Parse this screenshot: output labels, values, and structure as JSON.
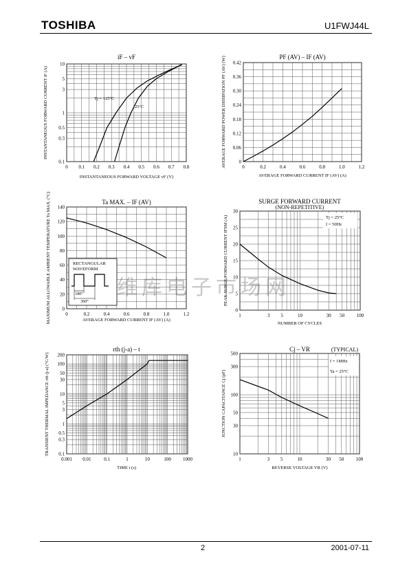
{
  "header": {
    "logo": "TOSHIBA",
    "part_number": "U1FWJ44L"
  },
  "footer": {
    "page": "2",
    "date": "2001-07-11"
  },
  "watermark": "维库电子市场网",
  "chart_data": [
    {
      "type": "line",
      "title": "iF – vF",
      "xlabel": "INSTANTANEOUS FORWARD VOLTAGE  vF  (V)",
      "ylabel": "INSTANTANEOUS FORWARD CURRENT  iF  (A)",
      "x_scale": "linear",
      "y_scale": "log",
      "xlim": [
        0,
        0.8
      ],
      "ylim": [
        0.1,
        10
      ],
      "xticks": [
        "0",
        "0.1",
        "0.2",
        "0.3",
        "0.4",
        "0.5",
        "0.6",
        "0.7",
        "0.8"
      ],
      "yticks": [
        "0.1",
        "0.3",
        "0.5",
        "1",
        "3",
        "5",
        "10"
      ],
      "annotations": [
        "Tj = 125°C",
        "25°C"
      ],
      "series": [
        {
          "x": [
            0.18,
            0.22,
            0.27,
            0.33,
            0.4,
            0.47,
            0.54,
            0.62,
            0.7,
            0.77
          ],
          "y": [
            0.1,
            0.2,
            0.5,
            1.0,
            2.0,
            3.2,
            4.5,
            6.0,
            7.8,
            9.6
          ]
        },
        {
          "x": [
            0.32,
            0.35,
            0.39,
            0.43,
            0.48,
            0.54,
            0.6,
            0.68,
            0.77
          ],
          "y": [
            0.1,
            0.2,
            0.5,
            1.0,
            2.0,
            3.5,
            5.0,
            7.0,
            9.8
          ]
        }
      ]
    },
    {
      "type": "line",
      "title": "PF (AV) – IF (AV)",
      "xlabel": "AVERAGE FORWARD CURRENT  IF (AV)  (A)",
      "ylabel": "AVERAGE FORWARD POWER DISSIPATION  PF (AV)  (W)",
      "xlim": [
        0,
        1.2
      ],
      "ylim": [
        0,
        0.42
      ],
      "xticks": [
        "0",
        "0.2",
        "0.4",
        "0.6",
        "0.8",
        "1.0",
        "1.2"
      ],
      "yticks": [
        "0",
        "0.06",
        "0.12",
        "0.18",
        "0.24",
        "0.30",
        "0.36",
        "0.42"
      ],
      "series": [
        {
          "x": [
            0,
            0.1,
            0.2,
            0.3,
            0.4,
            0.5,
            0.6,
            0.7,
            0.8,
            0.9,
            1.0
          ],
          "y": [
            0,
            0.022,
            0.045,
            0.07,
            0.097,
            0.126,
            0.158,
            0.192,
            0.23,
            0.27,
            0.31
          ]
        }
      ]
    },
    {
      "type": "line",
      "title": "Ta MAX. – IF (AV)",
      "xlabel": "AVERAGE FORWARD CURRENT  IF (AV)  (A)",
      "ylabel": "MAXIMUM ALLOWABLE AMBIENT TEMPERATURE  Ta MAX.  (°C)",
      "xlim": [
        0,
        1.2
      ],
      "ylim": [
        0,
        140
      ],
      "xticks": [
        "0",
        "0.2",
        "0.4",
        "0.6",
        "0.8",
        "1.0",
        "1.2"
      ],
      "yticks": [
        "0",
        "20",
        "40",
        "60",
        "80",
        "100",
        "120",
        "140"
      ],
      "inset": {
        "label_1": "RECTANGULAR",
        "label_2": "WAVEFORM",
        "angle_1": "180°",
        "angle_2": "360°"
      },
      "series": [
        {
          "x": [
            0,
            0.2,
            0.4,
            0.6,
            0.8,
            1.0
          ],
          "y": [
            125,
            118,
            109,
            98,
            85,
            70
          ]
        }
      ]
    },
    {
      "type": "line",
      "title": "SURGE FORWARD CURRENT",
      "subtitle": "(NON-REPETITIVE)",
      "xlabel": "NUMBER OF CYCLES",
      "ylabel": "PEAK SURGE FORWARD CURRENT  IFSM  (A)",
      "x_scale": "log",
      "xlim": [
        1,
        100
      ],
      "ylim": [
        0,
        30
      ],
      "xticks": [
        "1",
        "3",
        "5",
        "10",
        "30",
        "50",
        "100"
      ],
      "yticks": [
        "0",
        "5",
        "10",
        "15",
        "20",
        "25",
        "30"
      ],
      "annotations": [
        "Tj = 25°C",
        "f = 50Hz"
      ],
      "series": [
        {
          "x": [
            1,
            2,
            3,
            5,
            10,
            20,
            30,
            40
          ],
          "y": [
            20,
            15.5,
            13,
            10.5,
            8,
            6,
            5.2,
            5
          ]
        }
      ]
    },
    {
      "type": "line",
      "title": "rth (j-a) – t",
      "xlabel": "TIME  t  (s)",
      "ylabel": "TRANSIENT THERMAL IMPEDANCE  rth (j-a)  (°C/W)",
      "x_scale": "log",
      "y_scale": "log",
      "xlim": [
        0.001,
        1000
      ],
      "ylim": [
        0.1,
        200
      ],
      "xticks": [
        "0.001",
        "0.01",
        "0.1",
        "1",
        "10",
        "100",
        "1000"
      ],
      "yticks": [
        "0.1",
        "0.3",
        "0.5",
        "1",
        "3",
        "5",
        "10",
        "30",
        "50",
        "100",
        "200"
      ],
      "series": [
        {
          "x": [
            0.001,
            0.01,
            0.1,
            1,
            10,
            12,
            1000
          ],
          "y": [
            1.5,
            4,
            10,
            30,
            100,
            130,
            130
          ]
        }
      ]
    },
    {
      "type": "line",
      "title": "Cj – VR",
      "subtitle": "(TYPICAL)",
      "xlabel": "REVERSE VOLTAGE  VR  (V)",
      "ylabel": "JUNCTION CAPACITANCE  Cj  (pF)",
      "x_scale": "log",
      "y_scale": "log",
      "xlim": [
        1,
        100
      ],
      "ylim": [
        10,
        500
      ],
      "xticks": [
        "1",
        "3",
        "5",
        "10",
        "30",
        "50",
        "100"
      ],
      "yticks": [
        "10",
        "30",
        "50",
        "100",
        "300",
        "500"
      ],
      "annotations": [
        "f = 1MHz",
        "Ta = 25°C"
      ],
      "series": [
        {
          "x": [
            1,
            3,
            5,
            10,
            20,
            30
          ],
          "y": [
            180,
            120,
            90,
            65,
            48,
            40
          ]
        }
      ]
    }
  ]
}
